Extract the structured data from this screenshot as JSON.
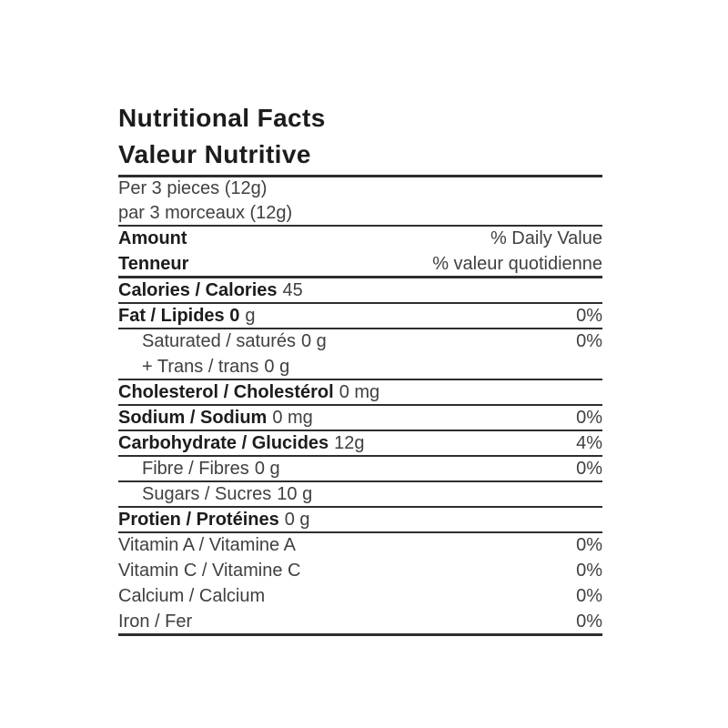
{
  "label": {
    "title_en": "Nutritional Facts",
    "title_fr": "Valeur Nutritive",
    "serving_en": "Per 3 pieces (12g)",
    "serving_fr": "par 3 morceaux (12g)",
    "header": {
      "amount_en": "Amount",
      "dv_en": "% Daily Value",
      "amount_fr": "Tenneur",
      "dv_fr": "% valeur quotidienne"
    },
    "calories": {
      "label": "Calories / Calories",
      "value": "45",
      "dv": ""
    },
    "nutrients": [
      {
        "name": "Fat / Lipides 0",
        "amount": "g",
        "dv": "0%"
      },
      {
        "name": "Saturated / saturés",
        "amount": "0 g",
        "dv": "0%"
      },
      {
        "name": "+ Trans / trans",
        "amount": "0 g",
        "dv": ""
      },
      {
        "name": "Cholesterol / Cholestérol",
        "amount": "0 mg",
        "dv": ""
      },
      {
        "name": "Sodium / Sodium",
        "amount": "0 mg",
        "dv": "0%"
      },
      {
        "name": "Carbohydrate / Glucides",
        "amount": "12g",
        "dv": "4%"
      },
      {
        "name": "Fibre / Fibres",
        "amount": "0 g",
        "dv": "0%"
      },
      {
        "name": "Sugars / Sucres",
        "amount": "10 g",
        "dv": ""
      },
      {
        "name": "Protien / Protéines",
        "amount": "0 g",
        "dv": ""
      }
    ],
    "vitamins": [
      {
        "name": "Vitamin A / Vitamine A",
        "dv": "0%"
      },
      {
        "name": "Vitamin C / Vitamine C",
        "dv": "0%"
      },
      {
        "name": "Calcium / Calcium",
        "dv": "0%"
      },
      {
        "name": "Iron / Fer",
        "dv": "0%"
      }
    ]
  },
  "colors": {
    "background": "#ffffff",
    "bold_text": "#1c1c1c",
    "regular_text": "#404040",
    "rule": "#2e2e2e"
  }
}
